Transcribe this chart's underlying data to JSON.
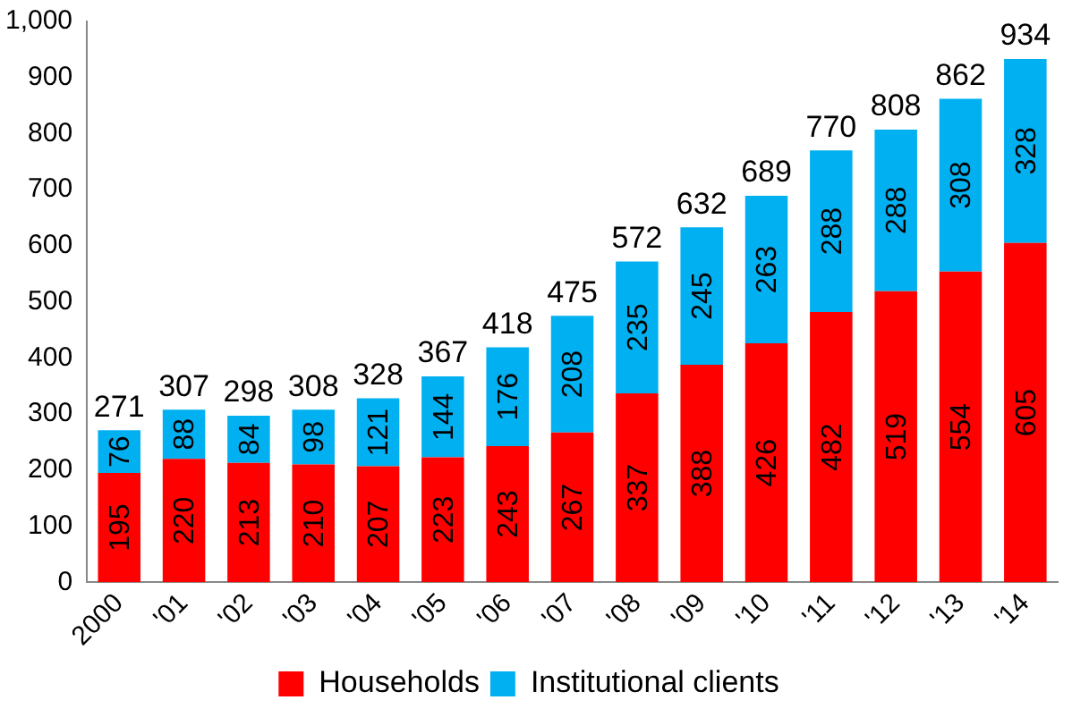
{
  "chart_data": {
    "type": "bar",
    "stacked": true,
    "categories": [
      "2000",
      "'01",
      "'02",
      "'03",
      "'04",
      "'05",
      "'06",
      "'07",
      "'08",
      "'09",
      "'10",
      "'11",
      "'12",
      "'13",
      "'14"
    ],
    "series": [
      {
        "name": "Households",
        "color": "#ff0000",
        "values": [
          195,
          220,
          213,
          210,
          207,
          223,
          243,
          267,
          337,
          388,
          426,
          482,
          519,
          554,
          605
        ]
      },
      {
        "name": "Institutional clients",
        "color": "#00b0f0",
        "values": [
          76,
          88,
          84,
          98,
          121,
          144,
          176,
          208,
          235,
          245,
          263,
          288,
          288,
          308,
          328
        ]
      }
    ],
    "totals": [
      "271",
      "307",
      "298",
      "308",
      "328",
      "367",
      "418",
      "475",
      "572",
      "632",
      "689",
      "770",
      "808",
      "862",
      "934"
    ],
    "data_labels": true,
    "ylim": [
      0,
      1000
    ],
    "yticks": [
      0,
      100,
      200,
      300,
      400,
      500,
      600,
      700,
      800,
      900,
      {
        "value": 1000,
        "label": "1,000"
      }
    ],
    "grid": false,
    "legend": "bottom"
  }
}
